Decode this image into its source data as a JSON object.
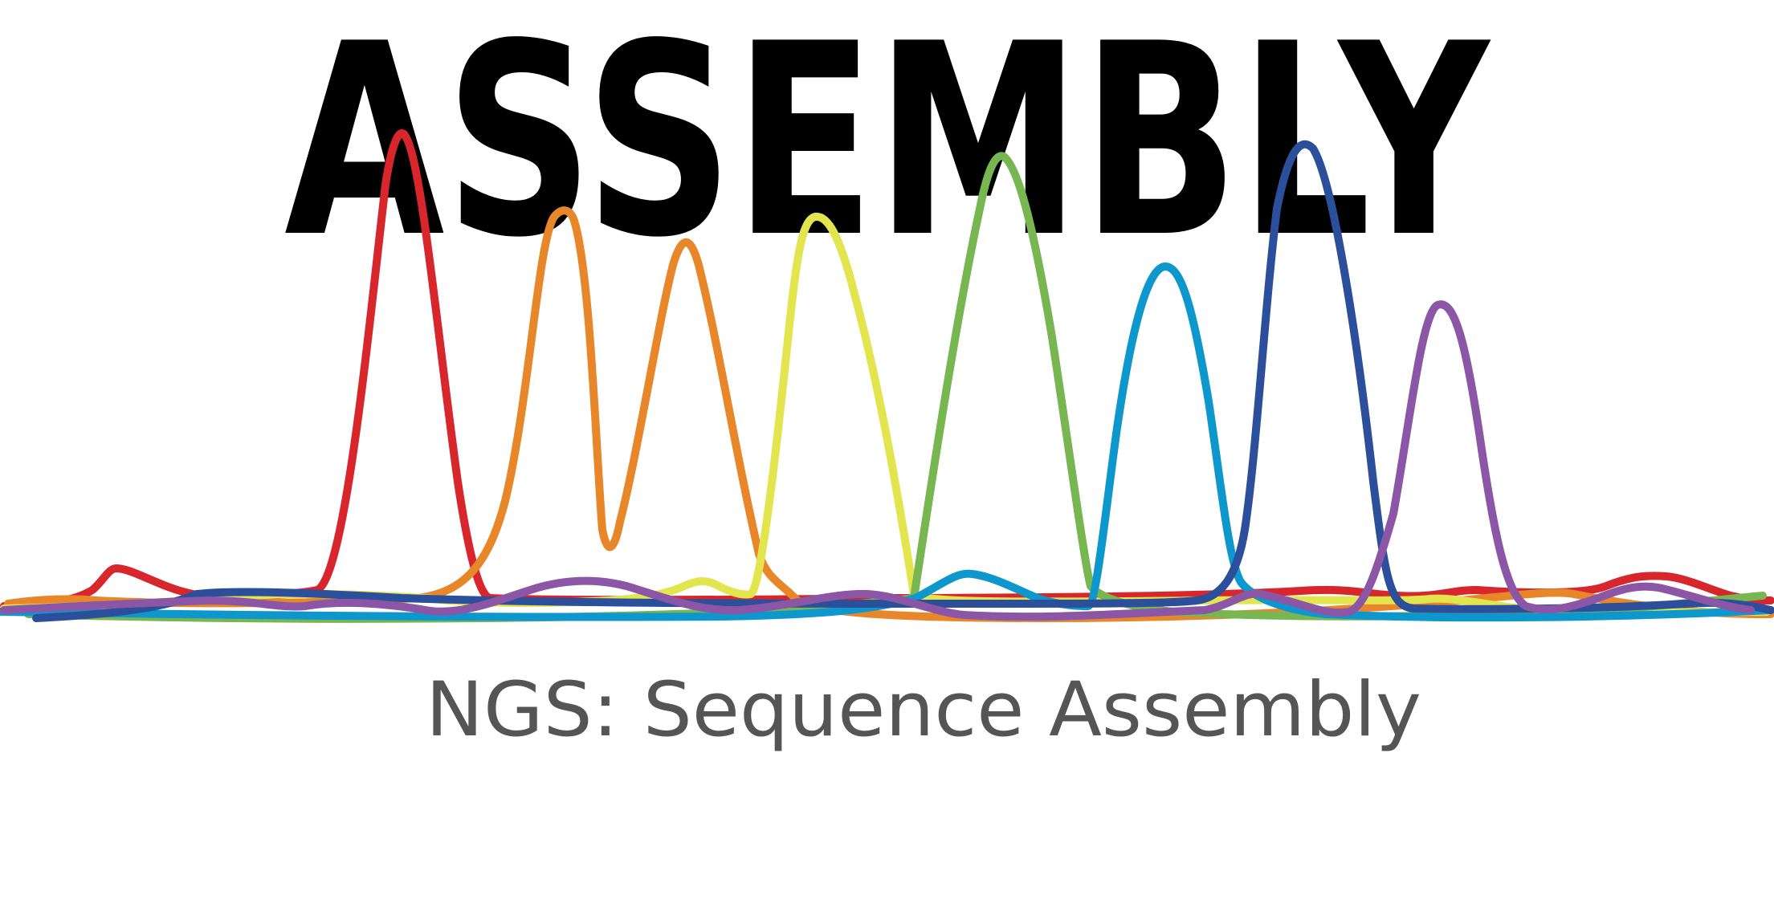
{
  "title": "ASSEMBLY",
  "subtitle": "NGS: Sequence Assembly",
  "colors": {
    "background": "#ffffff",
    "title": "#000000",
    "subtitle": "#555555"
  },
  "traces": [
    {
      "name": "red-trace",
      "color": "#d7262c"
    },
    {
      "name": "orange-trace",
      "color": "#e8872a"
    },
    {
      "name": "yellow-trace",
      "color": "#e3e54e"
    },
    {
      "name": "green-trace",
      "color": "#77b651"
    },
    {
      "name": "cyan-trace",
      "color": "#0e97cc"
    },
    {
      "name": "navy-trace",
      "color": "#2b4f9a"
    },
    {
      "name": "purple-trace",
      "color": "#8a56a5"
    }
  ]
}
